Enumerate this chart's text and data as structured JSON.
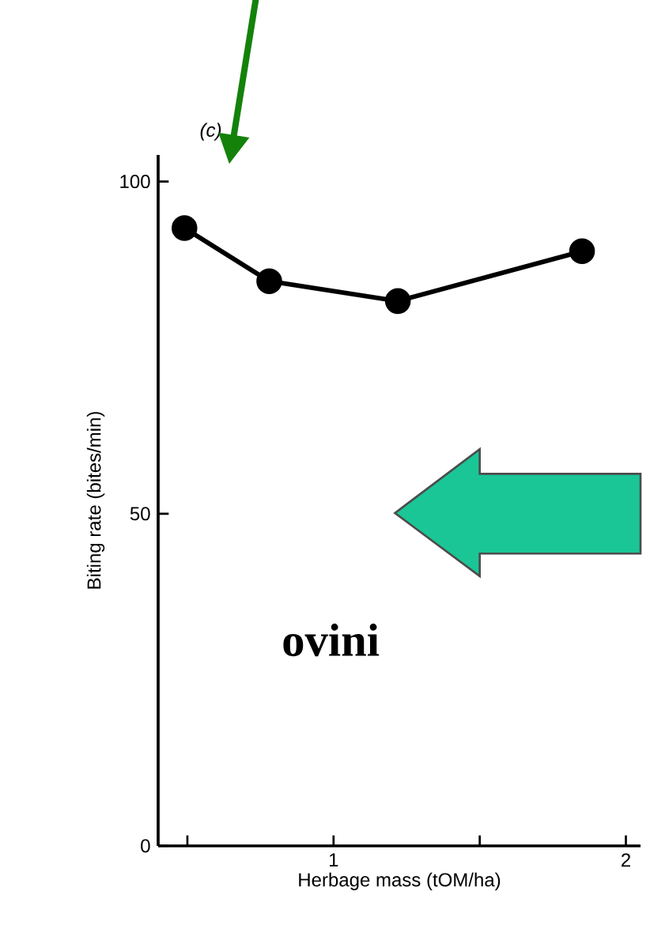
{
  "chart_data": {
    "type": "line",
    "xlabel": "Herbage mass (tOM/ha)",
    "ylabel": "Biting rate (bites/min)",
    "annotations": [
      "(c)",
      "ovini"
    ],
    "series": [
      {
        "color": "#000000",
        "x": [
          0.49,
          0.78,
          1.22,
          1.85
        ],
        "values": [
          93,
          85,
          82,
          89.5
        ]
      }
    ],
    "xlim": [
      0.4,
      2.05
    ],
    "ylim": [
      0,
      104
    ],
    "xticks": [
      {
        "value": 0.5,
        "label": null
      },
      1,
      {
        "value": 1.5,
        "label": null
      },
      2
    ],
    "yticks": [
      0,
      50,
      100
    ],
    "marker": "circle",
    "line_style": "solid"
  }
}
